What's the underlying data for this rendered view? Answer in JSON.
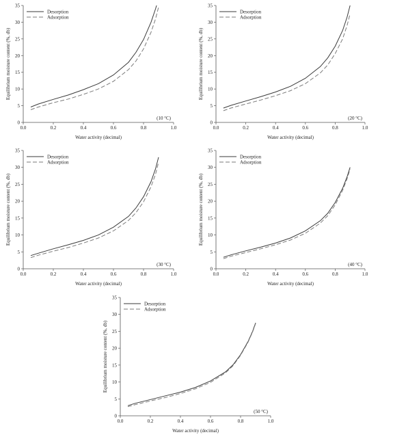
{
  "chart_data": [
    {
      "type": "line",
      "temperature_label": "(10 °C)",
      "xlabel": "Water activity (decimal)",
      "ylabel": "Equilibrium moisture content (%, db)",
      "xlim": [
        0.0,
        1.0
      ],
      "ylim": [
        0,
        35
      ],
      "xticks": [
        "0.0",
        "0.2",
        "0.4",
        "0.6",
        "0.8",
        "1.0"
      ],
      "yticks": [
        "0",
        "5",
        "10",
        "15",
        "20",
        "25",
        "30",
        "35"
      ],
      "legend_position": "top-left",
      "series": [
        {
          "name": "Desorption",
          "style": "solid",
          "x": [
            0.05,
            0.1,
            0.2,
            0.3,
            0.4,
            0.5,
            0.6,
            0.7,
            0.75,
            0.8,
            0.85,
            0.88,
            0.9
          ],
          "y": [
            4.6,
            5.5,
            6.9,
            8.2,
            9.8,
            11.6,
            14.2,
            18.0,
            21.0,
            24.8,
            30.0,
            34.0,
            37.0
          ]
        },
        {
          "name": "Adsorption",
          "style": "dashed",
          "x": [
            0.05,
            0.1,
            0.2,
            0.3,
            0.4,
            0.5,
            0.6,
            0.7,
            0.75,
            0.8,
            0.85,
            0.88,
            0.9
          ],
          "y": [
            3.8,
            4.6,
            5.9,
            7.0,
            8.4,
            10.0,
            12.3,
            15.8,
            18.4,
            22.0,
            27.0,
            31.0,
            34.5
          ]
        }
      ]
    },
    {
      "type": "line",
      "temperature_label": "(20 °C)",
      "xlabel": "Water activity (decimal)",
      "ylabel": "Equilibrium moisture content (%, db)",
      "xlim": [
        0.0,
        1.0
      ],
      "ylim": [
        0,
        35
      ],
      "xticks": [
        "0.0",
        "0.2",
        "0.4",
        "0.6",
        "0.8",
        "1.0"
      ],
      "yticks": [
        "0",
        "5",
        "10",
        "15",
        "20",
        "25",
        "30",
        "35"
      ],
      "legend_position": "top-left",
      "series": [
        {
          "name": "Desorption",
          "style": "solid",
          "x": [
            0.05,
            0.1,
            0.2,
            0.3,
            0.4,
            0.5,
            0.6,
            0.7,
            0.75,
            0.8,
            0.85,
            0.88,
            0.9
          ],
          "y": [
            4.3,
            5.1,
            6.4,
            7.7,
            9.1,
            10.8,
            13.2,
            16.7,
            19.3,
            22.8,
            27.5,
            31.5,
            35.0
          ]
        },
        {
          "name": "Adsorption",
          "style": "dashed",
          "x": [
            0.05,
            0.1,
            0.2,
            0.3,
            0.4,
            0.5,
            0.6,
            0.7,
            0.75,
            0.8,
            0.85,
            0.88,
            0.9
          ],
          "y": [
            3.5,
            4.3,
            5.5,
            6.7,
            8.0,
            9.5,
            11.6,
            14.8,
            17.2,
            20.6,
            25.0,
            29.0,
            32.5
          ]
        }
      ]
    },
    {
      "type": "line",
      "temperature_label": "(30 °C)",
      "xlabel": "Water activity (decimal)",
      "ylabel": "Equilibrium moisture content (%, db)",
      "xlim": [
        0.0,
        1.0
      ],
      "ylim": [
        0,
        35
      ],
      "xticks": [
        "0.0",
        "0.2",
        "0.4",
        "0.6",
        "0.8",
        "1.0"
      ],
      "yticks": [
        "0",
        "5",
        "10",
        "15",
        "20",
        "25",
        "30",
        "35"
      ],
      "legend_position": "top-left",
      "series": [
        {
          "name": "Desorption",
          "style": "solid",
          "x": [
            0.05,
            0.1,
            0.2,
            0.3,
            0.4,
            0.5,
            0.6,
            0.7,
            0.75,
            0.8,
            0.85,
            0.88,
            0.9
          ],
          "y": [
            3.9,
            4.6,
            5.9,
            7.1,
            8.4,
            10.0,
            12.3,
            15.5,
            18.0,
            21.3,
            25.8,
            29.6,
            33.0
          ]
        },
        {
          "name": "Adsorption",
          "style": "dashed",
          "x": [
            0.05,
            0.1,
            0.2,
            0.3,
            0.4,
            0.5,
            0.6,
            0.7,
            0.75,
            0.8,
            0.85,
            0.88,
            0.9
          ],
          "y": [
            3.3,
            4.0,
            5.2,
            6.3,
            7.6,
            9.1,
            11.2,
            14.3,
            16.6,
            19.8,
            24.3,
            28.0,
            31.5
          ]
        }
      ]
    },
    {
      "type": "line",
      "temperature_label": "(40 °C)",
      "xlabel": "Water activity (decimal)",
      "ylabel": "Equilibrium moisture content (%, db)",
      "xlim": [
        0.0,
        1.0
      ],
      "ylim": [
        0,
        35
      ],
      "xticks": [
        "0.0",
        "0.2",
        "0.4",
        "0.6",
        "0.8",
        "1.0"
      ],
      "yticks": [
        "0",
        "5",
        "10",
        "15",
        "20",
        "25",
        "30",
        "35"
      ],
      "legend_position": "top-left",
      "series": [
        {
          "name": "Desorption",
          "style": "solid",
          "x": [
            0.05,
            0.1,
            0.2,
            0.3,
            0.4,
            0.5,
            0.6,
            0.7,
            0.75,
            0.8,
            0.85,
            0.88,
            0.9
          ],
          "y": [
            3.4,
            4.1,
            5.3,
            6.4,
            7.6,
            9.1,
            11.2,
            14.2,
            16.4,
            19.6,
            23.8,
            27.2,
            30.0
          ]
        },
        {
          "name": "Adsorption",
          "style": "dashed",
          "x": [
            0.05,
            0.1,
            0.2,
            0.3,
            0.4,
            0.5,
            0.6,
            0.7,
            0.75,
            0.8,
            0.85,
            0.88,
            0.9
          ],
          "y": [
            3.0,
            3.7,
            4.8,
            5.9,
            7.1,
            8.5,
            10.5,
            13.5,
            15.7,
            18.9,
            23.2,
            26.6,
            29.5
          ]
        }
      ]
    },
    {
      "type": "line",
      "temperature_label": "(50 °C)",
      "xlabel": "Water activity (decimal)",
      "ylabel": "Equilibrium moisture content (%, db)",
      "xlim": [
        0.0,
        1.0
      ],
      "ylim": [
        0,
        35
      ],
      "xticks": [
        "0.0",
        "0.2",
        "0.4",
        "0.6",
        "0.8",
        "1.0"
      ],
      "yticks": [
        "0",
        "5",
        "10",
        "15",
        "20",
        "25",
        "30",
        "35"
      ],
      "legend_position": "top-left",
      "series": [
        {
          "name": "Desorption",
          "style": "solid",
          "x": [
            0.05,
            0.1,
            0.2,
            0.3,
            0.4,
            0.5,
            0.6,
            0.7,
            0.75,
            0.8,
            0.85,
            0.88,
            0.9
          ],
          "y": [
            3.0,
            3.7,
            4.8,
            5.9,
            7.0,
            8.4,
            10.3,
            13.0,
            15.1,
            18.1,
            22.0,
            25.0,
            27.5
          ]
        },
        {
          "name": "Adsorption",
          "style": "dashed",
          "x": [
            0.05,
            0.1,
            0.2,
            0.3,
            0.4,
            0.5,
            0.6,
            0.7,
            0.75,
            0.8,
            0.85,
            0.88,
            0.9
          ],
          "y": [
            2.7,
            3.3,
            4.4,
            5.4,
            6.6,
            8.0,
            9.9,
            12.7,
            14.8,
            17.9,
            21.8,
            24.8,
            27.3
          ]
        }
      ]
    }
  ],
  "colors": {
    "desorption": "#3a3a3a",
    "adsorption": "#7a7a7a",
    "axis": "#555555"
  }
}
